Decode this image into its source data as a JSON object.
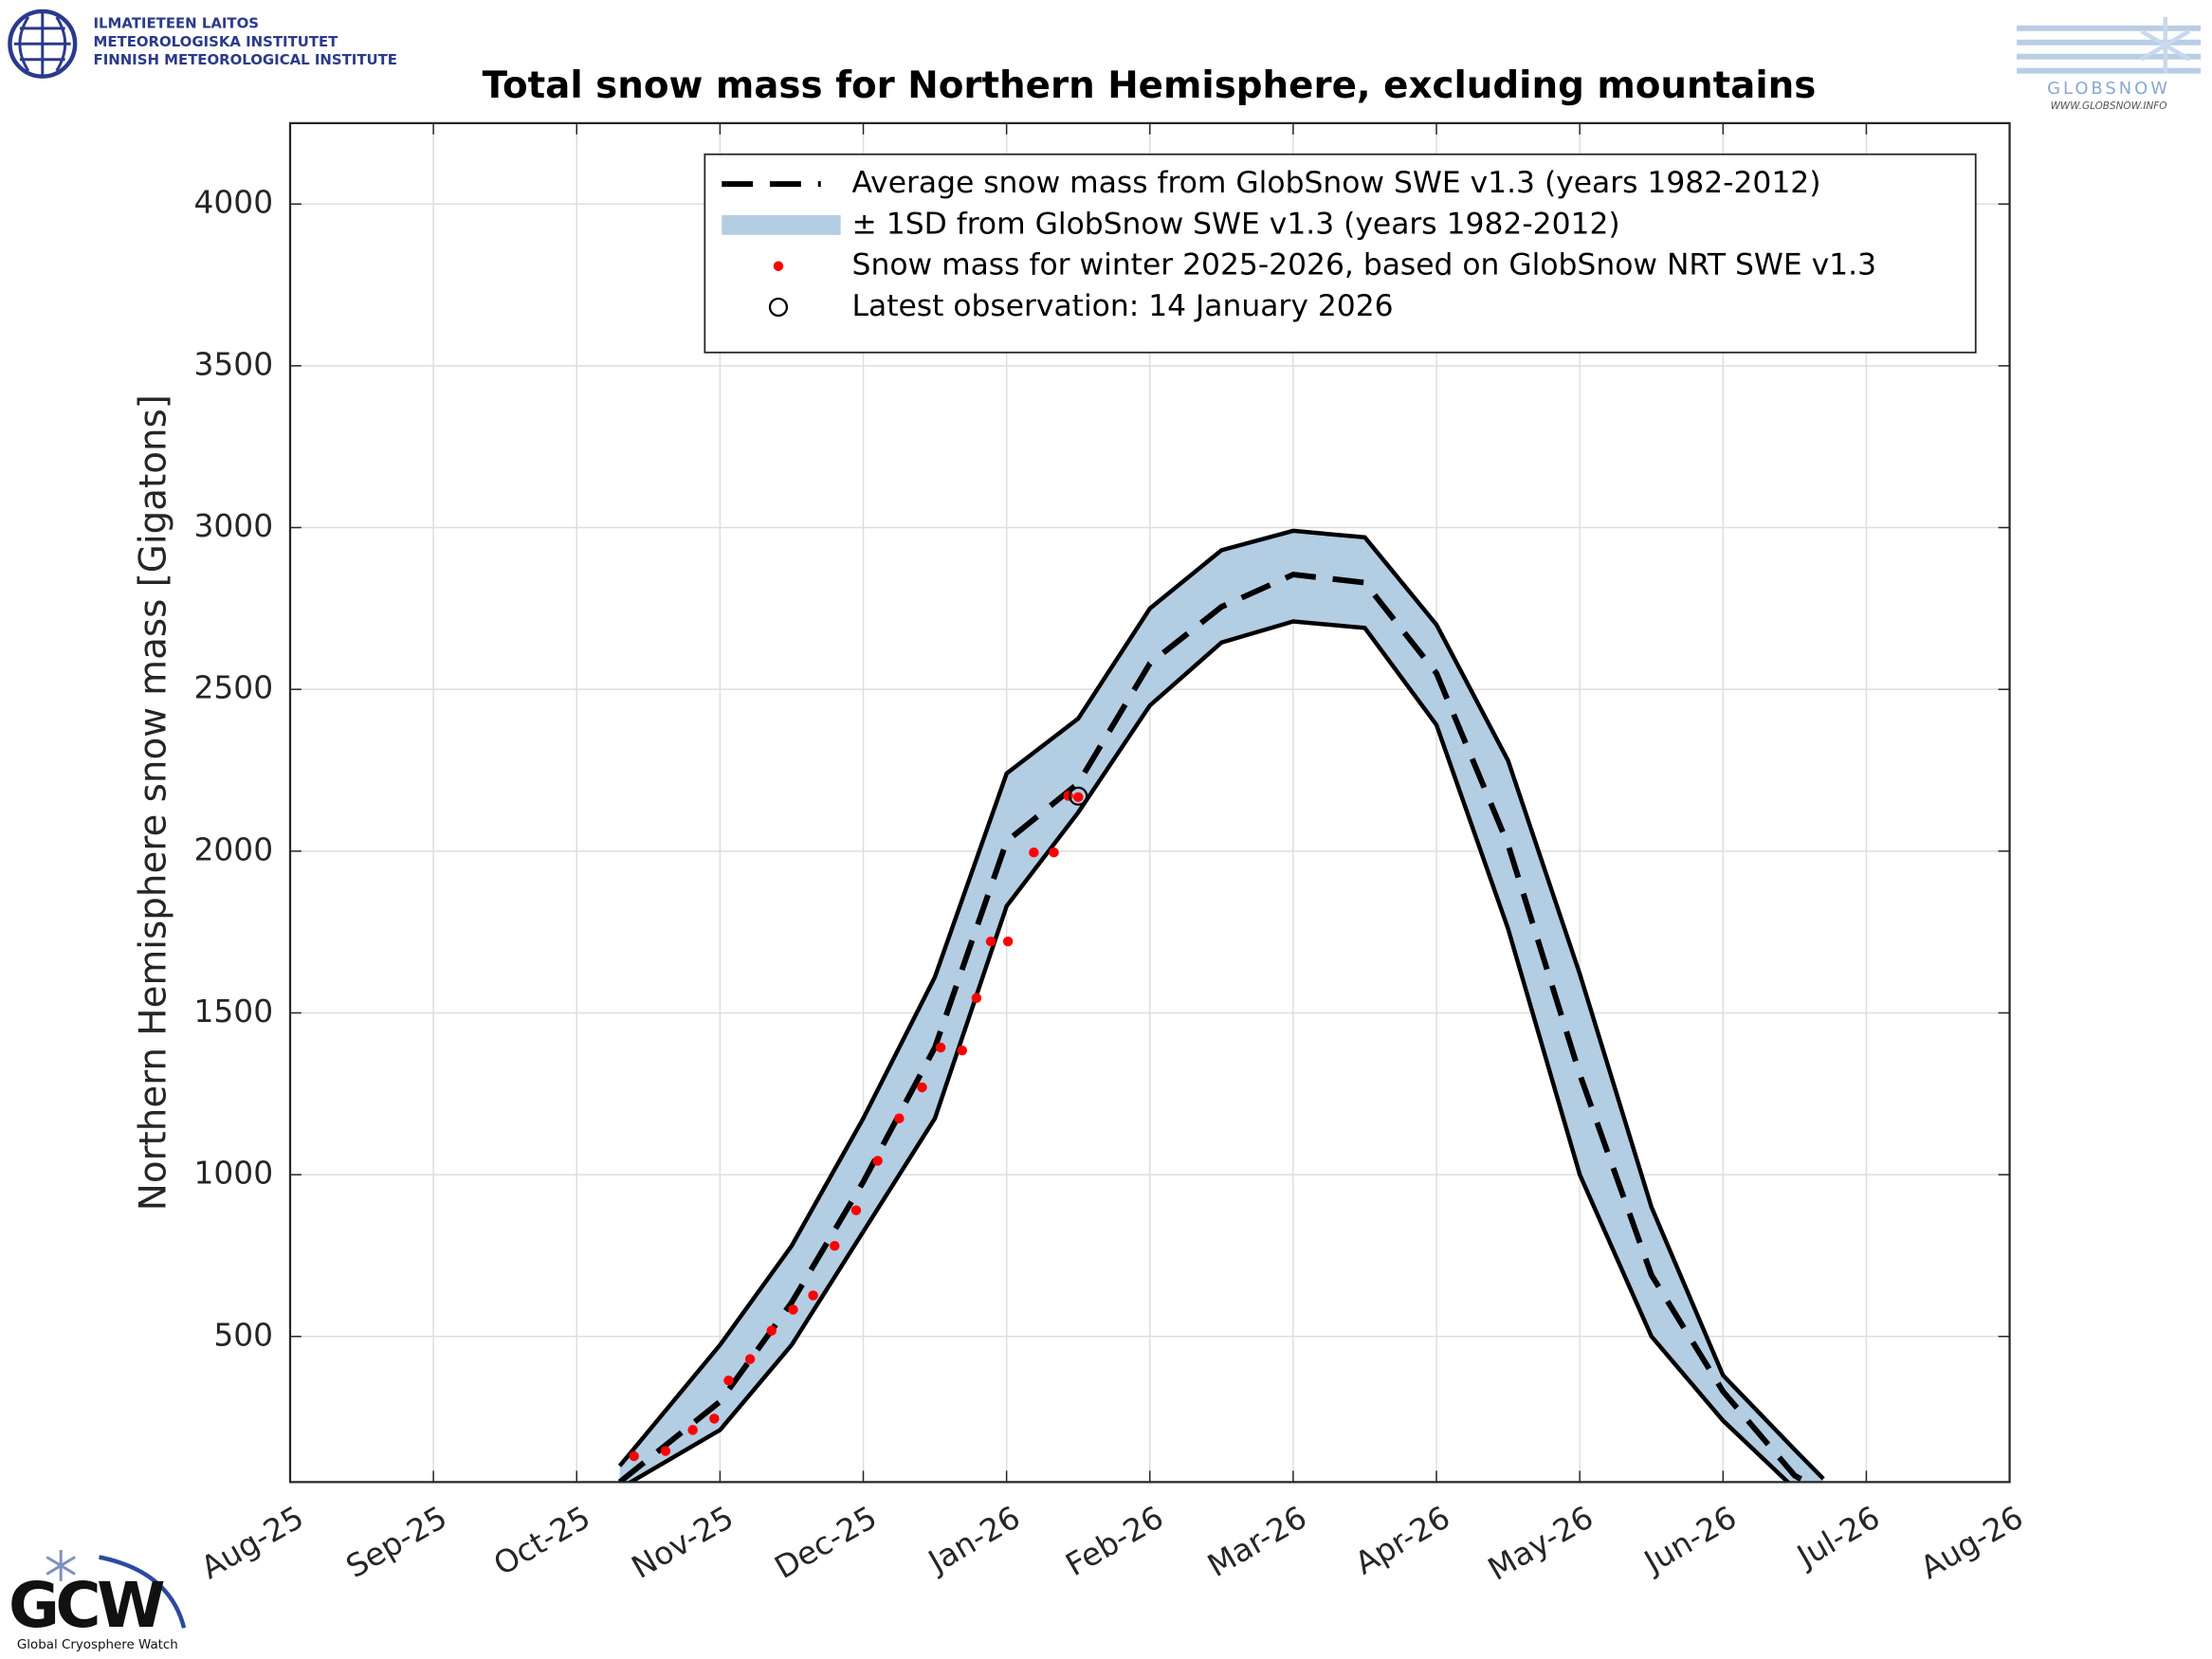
{
  "chart_data": {
    "type": "line",
    "title": "Total snow mass for Northern Hemisphere, excluding mountains",
    "y_label": "Northern Hemisphere snow mass [Gigatons]",
    "xlim": [
      0,
      12
    ],
    "xticks": [
      {
        "value": 0,
        "label": "Aug-25"
      },
      {
        "value": 1,
        "label": "Sep-25"
      },
      {
        "value": 2,
        "label": "Oct-25"
      },
      {
        "value": 3,
        "label": "Nov-25"
      },
      {
        "value": 4,
        "label": "Dec-25"
      },
      {
        "value": 5,
        "label": "Jan-26"
      },
      {
        "value": 6,
        "label": "Feb-26"
      },
      {
        "value": 7,
        "label": "Mar-26"
      },
      {
        "value": 8,
        "label": "Apr-26"
      },
      {
        "value": 9,
        "label": "May-26"
      },
      {
        "value": 10,
        "label": "Jun-26"
      },
      {
        "value": 11,
        "label": "Jul-26"
      },
      {
        "value": 12,
        "label": "Aug-26"
      }
    ],
    "ylim": [
      50,
      4250
    ],
    "yticks": [
      500,
      1000,
      1500,
      2000,
      2500,
      3000,
      3500,
      4000
    ],
    "grid": true,
    "legend": "top-right",
    "band": {
      "name": "± 1SD from GlobSnow SWE v1.3 (years 1982-2012)",
      "color": "#b3cde3",
      "x": [
        2.3,
        3,
        3.5,
        4,
        4.5,
        5,
        5.5,
        6,
        6.5,
        7,
        7.5,
        8,
        8.5,
        9,
        9.5,
        10,
        10.5,
        10.7
      ],
      "upper": [
        100,
        474,
        780,
        1174,
        1611,
        2240,
        2410,
        2750,
        2930,
        2990,
        2970,
        2700,
        2280,
        1620,
        900,
        380,
        150,
        60
      ],
      "lower": [
        30,
        211,
        474,
        824,
        1174,
        1830,
        2120,
        2450,
        2645,
        2710,
        2690,
        2390,
        1760,
        1000,
        500,
        240,
        30,
        0
      ]
    },
    "series": [
      {
        "name": "Average snow mass from GlobSnow SWE v1.3 (years 1982-2012)",
        "color": "#000000",
        "dash": true,
        "x": [
          2.3,
          3,
          3.5,
          4,
          4.5,
          5,
          5.5,
          6,
          6.5,
          7,
          7.5,
          8,
          8.5,
          9,
          9.5,
          10,
          10.5,
          10.7
        ],
        "values": [
          50,
          299,
          605,
          978,
          1393,
          2030,
          2210,
          2580,
          2755,
          2855,
          2830,
          2550,
          2020,
          1310,
          690,
          330,
          70,
          20
        ]
      },
      {
        "name": "Snow mass for winter 2025-2026, based on GlobSnow NRT SWE v1.3",
        "color": "#ff0000",
        "marker": "dot",
        "x": [
          2.4,
          2.62,
          2.81,
          2.96,
          3.06,
          3.21,
          3.36,
          3.51,
          3.65,
          3.8,
          3.95,
          4.1,
          4.25,
          4.41,
          4.54,
          4.69,
          4.79,
          4.89,
          5.01,
          5.19,
          5.33,
          5.43,
          5.5
        ],
        "values": [
          130,
          146,
          211,
          246,
          364,
          430,
          518,
          583,
          627,
          780,
          890,
          1043,
          1174,
          1270,
          1393,
          1384,
          1546,
          1721,
          1721,
          1996,
          1996,
          2171,
          2167
        ]
      },
      {
        "name": "Latest observation: 14 January 2026",
        "color": "#000000",
        "marker": "circle",
        "x": [
          5.5
        ],
        "values": [
          2170
        ]
      }
    ]
  },
  "logos": {
    "fmi": [
      "ILMATIETEEN LAITOS",
      "METEOROLOGISKA INSTITUTET",
      "FINNISH METEOROLOGICAL INSTITUTE"
    ],
    "globsnow": [
      "GLOBSNOW",
      "WWW.GLOBSNOW.INFO"
    ],
    "gcw": [
      "GCW",
      "Global Cryosphere Watch"
    ]
  }
}
